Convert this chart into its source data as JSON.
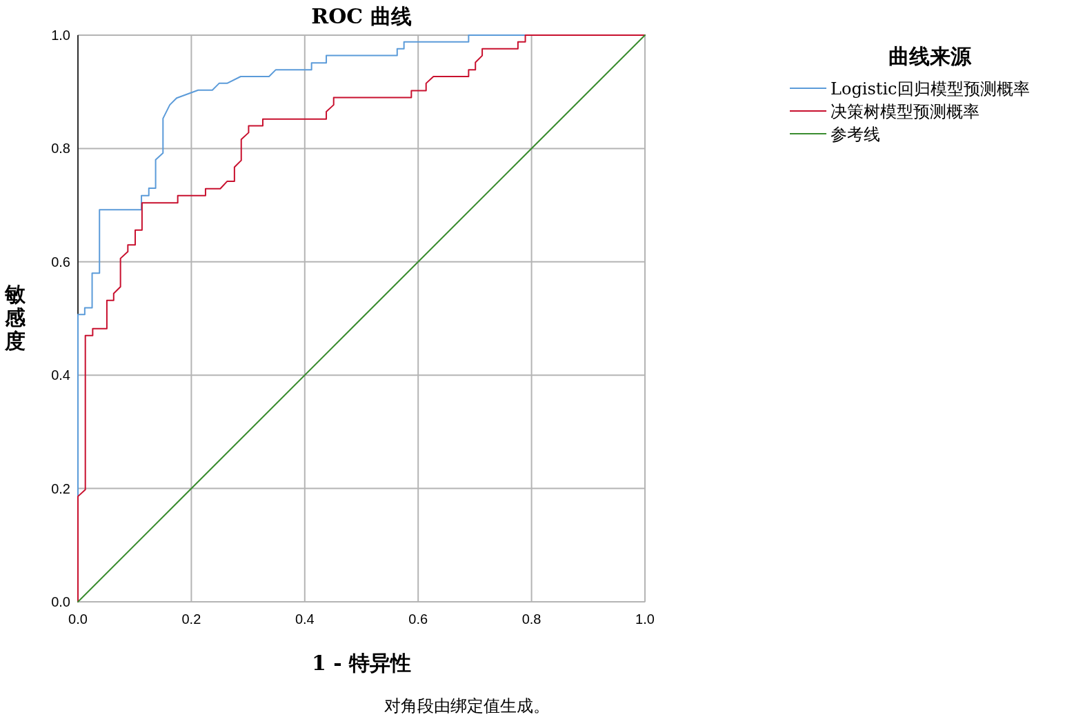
{
  "chart_data": {
    "type": "line",
    "title": "ROC 曲线",
    "xlabel": "1 - 特异性",
    "ylabel": "敏感度",
    "legend_title": "曲线来源",
    "legend": "top right",
    "grid": true,
    "line_style": "solid",
    "xlim": [
      0,
      1
    ],
    "ylim": [
      0,
      1
    ],
    "xticks": [
      {
        "value": 0,
        "label": "0.0"
      },
      {
        "value": 0.2,
        "label": "0.2"
      },
      {
        "value": 0.4,
        "label": "0.4"
      },
      {
        "value": 0.6,
        "label": "0.6"
      },
      {
        "value": 0.8,
        "label": "0.8"
      },
      {
        "value": 1,
        "label": "1.0"
      }
    ],
    "yticks": [
      {
        "value": 0,
        "label": "0.0"
      },
      {
        "value": 0.2,
        "label": "0.2"
      },
      {
        "value": 0.4,
        "label": "0.4"
      },
      {
        "value": 0.6,
        "label": "0.6"
      },
      {
        "value": 0.8,
        "label": "0.8"
      },
      {
        "value": 1,
        "label": "1.0"
      }
    ],
    "annotations": [
      "对角段由绑定值生成。"
    ],
    "series": [
      {
        "name": "Logistic回归模型预测概率",
        "color": "#5b9bd9",
        "x": [
          0,
          0,
          0.012,
          0.012,
          0.025,
          0.025,
          0.038,
          0.038,
          0.112,
          0.112,
          0.125,
          0.125,
          0.137,
          0.137,
          0.15,
          0.15,
          0.162,
          0.174,
          0.212,
          0.237,
          0.249,
          0.263,
          0.287,
          0.337,
          0.349,
          0.412,
          0.412,
          0.438,
          0.438,
          0.563,
          0.563,
          0.575,
          0.575,
          0.689,
          0.689,
          1
        ],
        "values": [
          0,
          0.507,
          0.507,
          0.519,
          0.519,
          0.58,
          0.58,
          0.692,
          0.692,
          0.717,
          0.717,
          0.73,
          0.73,
          0.78,
          0.792,
          0.853,
          0.877,
          0.889,
          0.903,
          0.903,
          0.915,
          0.915,
          0.927,
          0.927,
          0.939,
          0.939,
          0.951,
          0.951,
          0.964,
          0.964,
          0.976,
          0.976,
          0.988,
          0.988,
          1,
          1
        ]
      },
      {
        "name": "决策树模型预测概率",
        "color": "#c8102e",
        "x": [
          0,
          0,
          0.013,
          0.013,
          0.026,
          0.026,
          0.051,
          0.051,
          0.063,
          0.063,
          0.075,
          0.075,
          0.088,
          0.088,
          0.101,
          0.101,
          0.113,
          0.113,
          0.176,
          0.176,
          0.225,
          0.225,
          0.251,
          0.263,
          0.276,
          0.276,
          0.288,
          0.288,
          0.301,
          0.301,
          0.326,
          0.326,
          0.438,
          0.438,
          0.451,
          0.451,
          0.588,
          0.588,
          0.614,
          0.614,
          0.627,
          0.689,
          0.689,
          0.701,
          0.701,
          0.713,
          0.713,
          0.776,
          0.776,
          0.789,
          0.789,
          1
        ],
        "values": [
          0,
          0.186,
          0.198,
          0.47,
          0.47,
          0.482,
          0.482,
          0.532,
          0.532,
          0.544,
          0.556,
          0.606,
          0.618,
          0.63,
          0.63,
          0.656,
          0.656,
          0.704,
          0.704,
          0.717,
          0.717,
          0.729,
          0.729,
          0.742,
          0.742,
          0.767,
          0.779,
          0.816,
          0.828,
          0.84,
          0.84,
          0.852,
          0.852,
          0.865,
          0.877,
          0.89,
          0.89,
          0.902,
          0.902,
          0.915,
          0.927,
          0.927,
          0.939,
          0.939,
          0.952,
          0.964,
          0.976,
          0.976,
          0.988,
          0.988,
          1,
          1
        ]
      },
      {
        "name": "参考线",
        "color": "#3a8c2f",
        "x": [
          0,
          1
        ],
        "values": [
          0,
          1
        ]
      }
    ]
  }
}
